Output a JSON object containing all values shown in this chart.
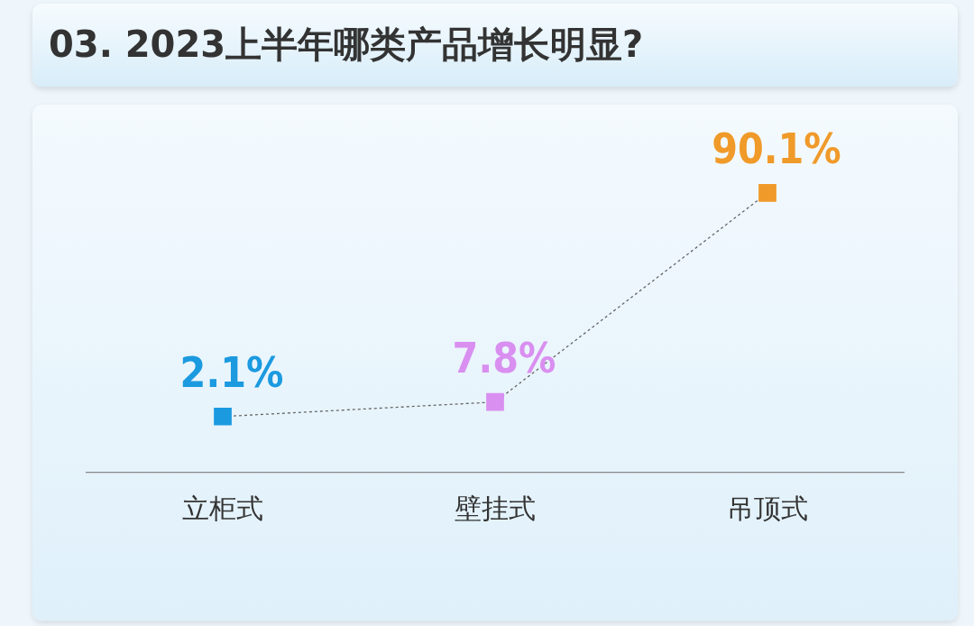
{
  "chart_data": {
    "type": "line",
    "title": "03. 2023上半年哪类产品增长明显?",
    "categories": [
      "立柜式",
      "壁挂式",
      "吊顶式"
    ],
    "series": [
      {
        "color": "#666666",
        "colors": [
          "#1b9ae0",
          "#d98ff0",
          "#f09a2a"
        ],
        "values": [
          2.1,
          7.8,
          90.1
        ],
        "value_labels": [
          "2.1%",
          "7.8%",
          "90.1%"
        ]
      }
    ],
    "marker": "square",
    "line_style": "dotted",
    "legend": false,
    "grid": false
  }
}
